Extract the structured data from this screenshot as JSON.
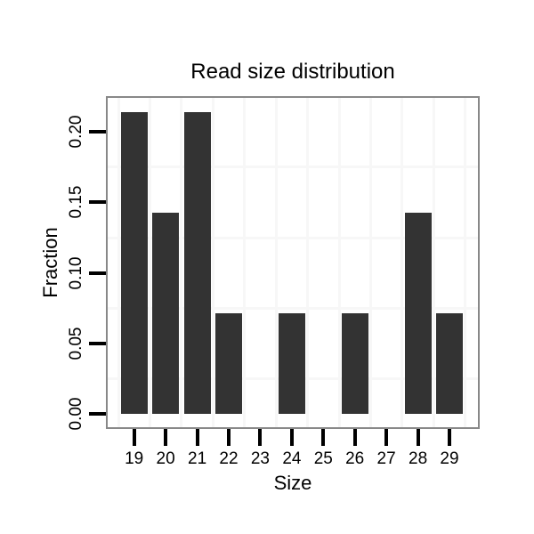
{
  "chart_data": {
    "type": "bar",
    "title": "Read size distribution",
    "xlabel": "Size",
    "ylabel": "Fraction",
    "categories": [
      "19",
      "20",
      "21",
      "22",
      "23",
      "24",
      "25",
      "26",
      "27",
      "28",
      "29"
    ],
    "values": [
      0.2143,
      0.1429,
      0.2143,
      0.0714,
      0,
      0.0714,
      0,
      0.0714,
      0,
      0.1429,
      0.0714
    ],
    "ytick_values": [
      0.0,
      0.05,
      0.1,
      0.15,
      0.2
    ],
    "ytick_labels": [
      "0.00",
      "0.05",
      "0.10",
      "0.15",
      "0.20"
    ],
    "ylim": [
      0,
      0.225
    ],
    "grid": "minor gridlines only, between categories and at 0.025 intervals",
    "y_minor_gridline_values": [
      0.025,
      0.075,
      0.125,
      0.175
    ],
    "legend": "none",
    "colors": {
      "bar": "#333333",
      "panel_border": "#888888",
      "gridline": "#f7f7f7",
      "tick": "#000000",
      "text": "#000000",
      "background": "#ffffff"
    }
  }
}
